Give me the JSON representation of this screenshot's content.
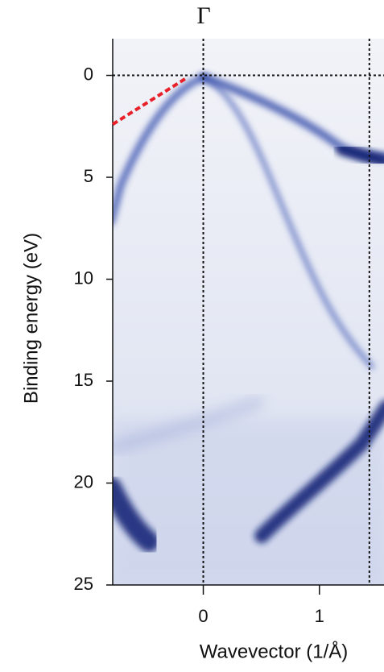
{
  "chart_data": {
    "type": "heatmap-image",
    "title": "Γ",
    "xlabel": "Wavevector (1/Å)",
    "ylabel": "Binding energy (eV)",
    "xlim": [
      -0.78,
      1.556
    ],
    "ylim": [
      25,
      -1.8
    ],
    "xticks": [
      0,
      1
    ],
    "yticks": [
      0,
      5,
      10,
      15,
      20,
      25
    ],
    "vlines": [
      0,
      1.43
    ],
    "hlines": [
      0
    ],
    "guide_line": {
      "x": [
        -0.78,
        -0.15
      ],
      "y": [
        2.4,
        0.15
      ],
      "color": "#e8202a"
    },
    "colormap": [
      "#eef0f7",
      "#1a2a8a"
    ]
  }
}
